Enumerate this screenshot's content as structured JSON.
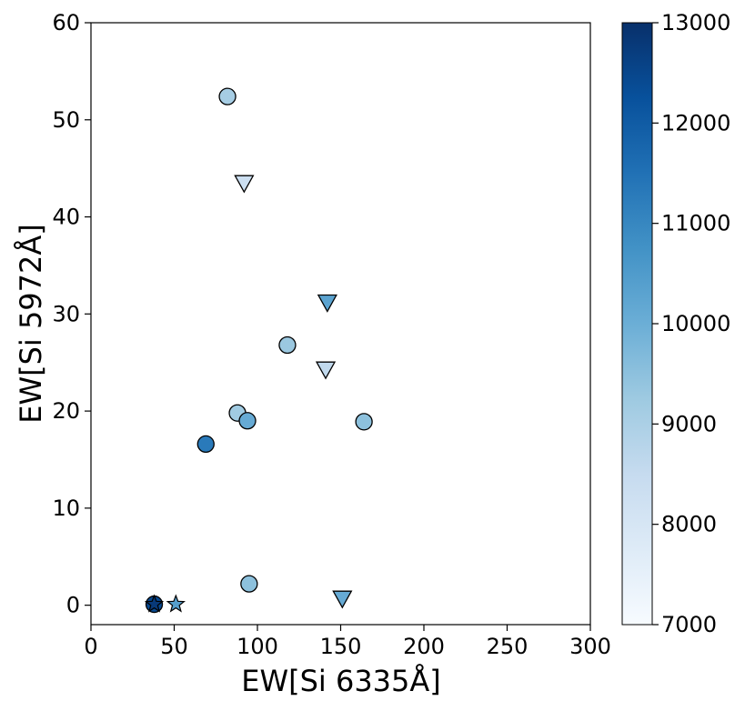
{
  "chart_data": {
    "type": "scatter",
    "title": "",
    "xlabel": "EW[Si 6335Å]",
    "ylabel": "EW[Si 5972Å]",
    "xlim": [
      0,
      300
    ],
    "ylim": [
      -2,
      60
    ],
    "xticks": [
      0,
      50,
      100,
      150,
      200,
      250,
      300
    ],
    "yticks": [
      0,
      10,
      20,
      30,
      40,
      50,
      60
    ],
    "grid": false,
    "colorbar": {
      "label": "",
      "range": [
        7000,
        13000
      ],
      "ticks": [
        7000,
        8000,
        9000,
        10000,
        11000,
        12000,
        13000
      ],
      "colormap": "Blues",
      "low_color": "#f7fbff",
      "high_color": "#08306b"
    },
    "series": [
      {
        "marker": "circle",
        "points": [
          {
            "x": 82,
            "y": 52.4,
            "c": 9100
          },
          {
            "x": 118,
            "y": 26.8,
            "c": 9300
          },
          {
            "x": 88,
            "y": 19.8,
            "c": 9200
          },
          {
            "x": 94,
            "y": 19.0,
            "c": 10100
          },
          {
            "x": 164,
            "y": 18.9,
            "c": 9500
          },
          {
            "x": 69,
            "y": 16.6,
            "c": 11300
          },
          {
            "x": 95,
            "y": 2.2,
            "c": 9500
          },
          {
            "x": 38,
            "y": 0.1,
            "c": 12400
          }
        ]
      },
      {
        "marker": "triangle-down",
        "note_upper_limit": true,
        "points": [
          {
            "x": 92,
            "y": 43.5,
            "c": 8300
          },
          {
            "x": 142,
            "y": 31.2,
            "c": 10300
          },
          {
            "x": 141,
            "y": 24.3,
            "c": 8600
          },
          {
            "x": 151,
            "y": 0.7,
            "c": 10100
          }
        ]
      },
      {
        "marker": "star",
        "points": [
          {
            "x": 38,
            "y": 0.1,
            "c": 12800
          },
          {
            "x": 51,
            "y": 0.1,
            "c": 10400
          }
        ]
      }
    ]
  }
}
